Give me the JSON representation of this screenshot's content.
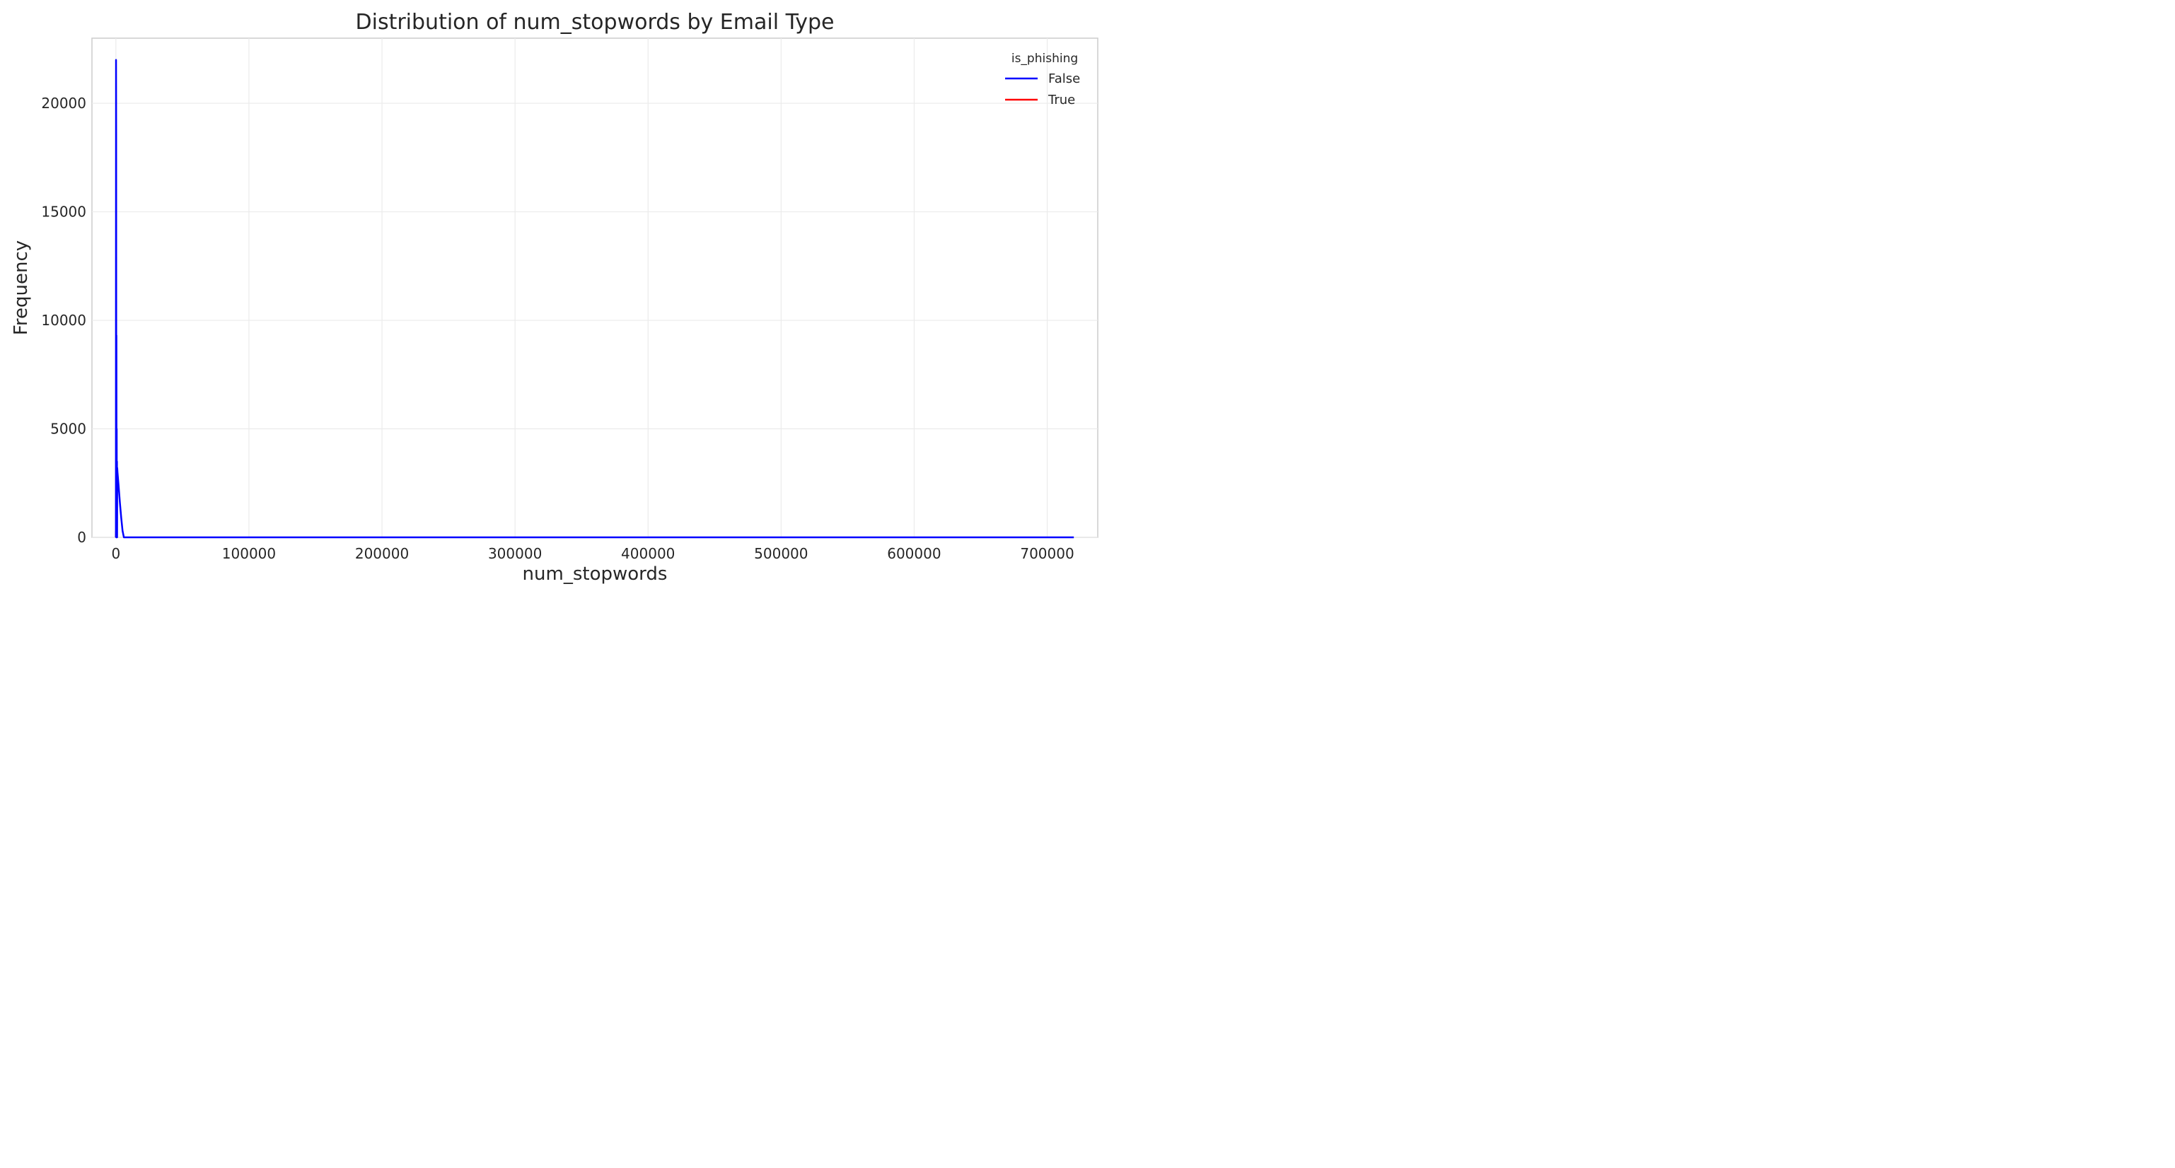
{
  "chart_data": {
    "type": "line",
    "title": "Distribution of num_stopwords by Email Type",
    "xlabel": "num_stopwords",
    "ylabel": "Frequency",
    "xlim": [
      -18000,
      738000
    ],
    "ylim": [
      0,
      23000
    ],
    "xticks": [
      0,
      100000,
      200000,
      300000,
      400000,
      500000,
      600000,
      700000
    ],
    "yticks": [
      0,
      5000,
      10000,
      15000,
      20000
    ],
    "grid": true,
    "legend": {
      "title": "is_phishing",
      "placement": "top-right"
    },
    "series": [
      {
        "name": "False",
        "color": "#0000ff",
        "x": [
          0,
          100,
          200,
          300,
          400,
          500,
          600,
          700,
          800,
          900,
          1000,
          1200,
          2000,
          3000,
          4000,
          5000,
          6000,
          100000,
          300000,
          500000,
          720000
        ],
        "y": [
          0,
          22000,
          18600,
          0,
          9300,
          0,
          5000,
          0,
          3500,
          0,
          3200,
          3000,
          2400,
          1600,
          900,
          300,
          0,
          0,
          0,
          0,
          0
        ]
      },
      {
        "name": "True",
        "color": "#ff0000",
        "x": [
          0,
          100,
          200,
          300,
          400,
          500,
          600
        ],
        "y": [
          0,
          300,
          200,
          100,
          50,
          20,
          0
        ]
      }
    ]
  }
}
